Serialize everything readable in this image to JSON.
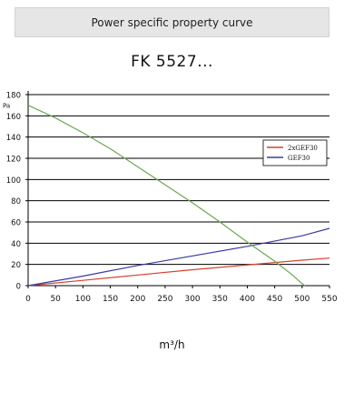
{
  "header": {
    "title": "Power specific property curve"
  },
  "chart_data": {
    "type": "line",
    "title": "FK 5527...",
    "xlabel": "m³/h",
    "ylabel": "Pa",
    "xlim": [
      0,
      550
    ],
    "ylim": [
      0,
      180
    ],
    "x_ticks": [
      0,
      50,
      100,
      150,
      200,
      250,
      300,
      350,
      400,
      450,
      500,
      550
    ],
    "y_ticks": [
      0,
      20,
      40,
      60,
      80,
      100,
      120,
      140,
      160,
      180
    ],
    "grid": "horizontal",
    "legend_position": "right",
    "series": [
      {
        "name": "2xGEF30",
        "color": "#d8412f",
        "x": [
          0,
          100,
          200,
          300,
          400,
          500,
          550
        ],
        "y": [
          0,
          5,
          10,
          15,
          19.5,
          24,
          26
        ]
      },
      {
        "name": "GEF30",
        "color": "#3a3aa8",
        "x": [
          0,
          100,
          200,
          300,
          400,
          500,
          550
        ],
        "y": [
          0,
          9,
          19,
          28,
          37,
          47,
          54
        ]
      },
      {
        "name": "",
        "color": "#6aa84f",
        "x": [
          0,
          50,
          100,
          150,
          200,
          250,
          300,
          350,
          400,
          450,
          480,
          500,
          505
        ],
        "y": [
          170,
          158,
          144,
          129,
          112,
          95,
          78,
          60,
          41,
          23,
          11,
          2,
          0
        ]
      }
    ]
  }
}
